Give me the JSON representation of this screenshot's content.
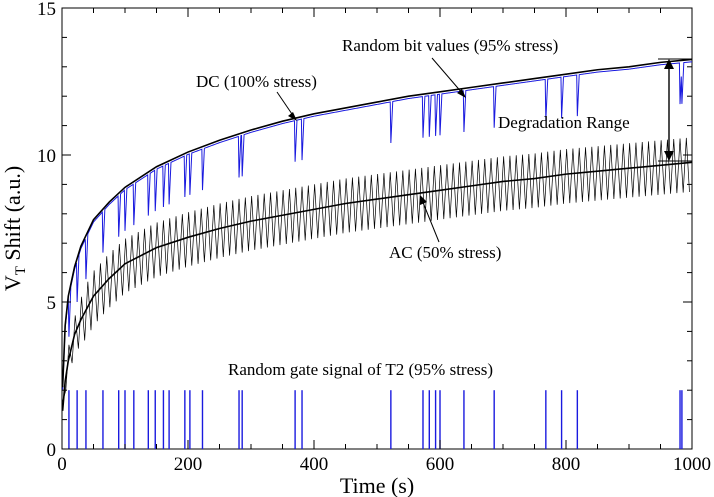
{
  "chart_data": {
    "type": "line",
    "xlabel": "Time (s)",
    "ylabel_main": "V",
    "ylabel_sub": "T",
    "ylabel_rest": " Shift (a.u.)",
    "xlim": [
      0,
      1000
    ],
    "ylim": [
      0,
      15
    ],
    "xticks": [
      0,
      200,
      400,
      600,
      800,
      1000
    ],
    "yticks": [
      0,
      5,
      10,
      15
    ],
    "grid": false,
    "colors": {
      "black": "#000000",
      "blue": "#1a1adf"
    },
    "series": [
      {
        "key": "dc",
        "color": "#000000",
        "x": [
          1,
          5,
          10,
          20,
          30,
          50,
          75,
          100,
          150,
          200,
          250,
          300,
          350,
          400,
          450,
          500,
          550,
          600,
          650,
          700,
          750,
          800,
          850,
          900,
          950,
          1000
        ],
        "y": [
          2.1,
          4.2,
          5.2,
          6.2,
          6.9,
          7.8,
          8.4,
          8.9,
          9.6,
          10.1,
          10.5,
          10.85,
          11.15,
          11.4,
          11.6,
          11.8,
          12.0,
          12.15,
          12.3,
          12.45,
          12.6,
          12.75,
          12.9,
          13.0,
          13.15,
          13.25
        ]
      },
      {
        "key": "ac_mean",
        "color": "#000000",
        "x": [
          1,
          5,
          10,
          20,
          30,
          50,
          75,
          100,
          150,
          200,
          250,
          300,
          350,
          400,
          450,
          500,
          550,
          600,
          650,
          700,
          750,
          800,
          850,
          900,
          950,
          1000
        ],
        "y": [
          1.3,
          2.3,
          3.0,
          3.9,
          4.4,
          5.2,
          5.8,
          6.3,
          6.85,
          7.2,
          7.5,
          7.75,
          7.95,
          8.15,
          8.35,
          8.5,
          8.65,
          8.8,
          8.95,
          9.1,
          9.2,
          9.35,
          9.45,
          9.55,
          9.65,
          9.75
        ]
      }
    ],
    "ac_oscillation": {
      "period_s": 10,
      "upper_offset": 0.85,
      "lower_offset": -1.0
    },
    "random_gate_off_times_s": [
      11,
      24,
      38,
      65,
      90,
      100,
      114,
      137,
      148,
      161,
      170,
      195,
      203,
      223,
      281,
      286,
      370,
      381,
      522,
      573,
      583,
      593,
      600,
      638,
      686,
      768,
      793,
      818,
      981,
      984
    ],
    "random_gate_pulse_height": 2.0,
    "random_bit_dip_depth": 1.4,
    "annotations": [
      {
        "key": "random_bit",
        "text": "Random bit values (95% stress)"
      },
      {
        "key": "dc",
        "text": "DC (100% stress)"
      },
      {
        "key": "deg",
        "text": "Degradation Range"
      },
      {
        "key": "ac",
        "text": "AC (50% stress)"
      },
      {
        "key": "gate",
        "text": "Random gate signal of T2 (95% stress)"
      }
    ]
  }
}
